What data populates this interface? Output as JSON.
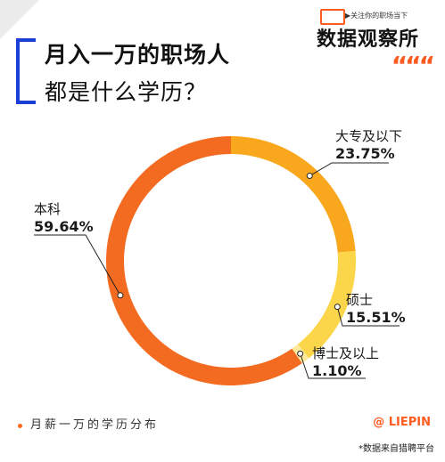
{
  "header": {
    "title_line1": "月入一万的职场人",
    "title_line2": "都是什么学历？"
  },
  "brand": {
    "slogan": "▶关注你的职场当下",
    "name": "数据观察所",
    "quote_mark": "“““"
  },
  "footer": {
    "caption": "月薪一万的学历分布",
    "brand": "@ LIEPIN",
    "source": "*数据来自猎聘平台"
  },
  "colors": {
    "accent_blue": "#1b3fd6",
    "brand_orange": "#ff5a1f",
    "slice_bachelor": "#f26b21",
    "slice_college": "#f9a71c",
    "slice_master": "#fcd64a",
    "slice_phd": "#fde99a"
  },
  "chart_data": {
    "type": "pie",
    "style": "donut",
    "title": "",
    "categories": [
      "大专及以下",
      "硕士",
      "博士及以上",
      "本科"
    ],
    "values": [
      23.75,
      15.51,
      1.1,
      59.64
    ],
    "labels": [
      "23.75%",
      "15.51%",
      "1.10%",
      "59.64%"
    ],
    "colors": [
      "#f9a71c",
      "#fcd64a",
      "#fde99a",
      "#f26b21"
    ],
    "start": "top",
    "direction": "clockwise"
  }
}
